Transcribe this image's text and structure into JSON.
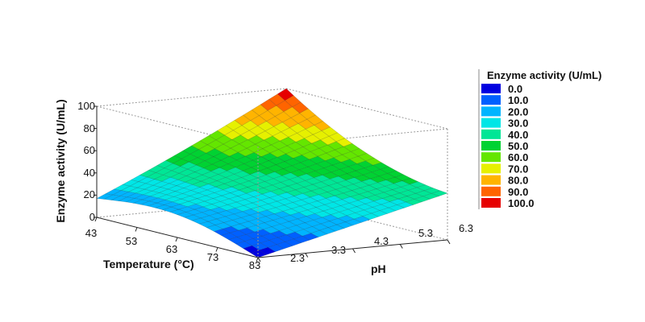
{
  "chart_data": {
    "type": "surface3d",
    "title": "",
    "xlabel": "Temperature (°C)",
    "ylabel": "pH",
    "zlabel": "Enzyme activity (U/mL)",
    "x_ticks": [
      "43",
      "53",
      "63",
      "73",
      "83"
    ],
    "y_ticks": [
      "2.3",
      "3.3",
      "4.3",
      "5.3",
      "6.3"
    ],
    "z_ticks": [
      "0",
      "20",
      "40",
      "60",
      "80",
      "100"
    ],
    "xlim": [
      43,
      83
    ],
    "ylim": [
      2.3,
      6.3
    ],
    "zlim": [
      0,
      100
    ],
    "grid": false,
    "legend": {
      "title": "Enzyme activity (U/mL)",
      "placement": "right",
      "entries": [
        {
          "label": "0.0",
          "value": 0,
          "color": "#0000e0"
        },
        {
          "label": "10.0",
          "value": 10,
          "color": "#0060ff"
        },
        {
          "label": "20.0",
          "value": 20,
          "color": "#00b4ff"
        },
        {
          "label": "30.0",
          "value": 30,
          "color": "#00e6e6"
        },
        {
          "label": "40.0",
          "value": 40,
          "color": "#00e696"
        },
        {
          "label": "50.0",
          "value": 50,
          "color": "#00d232"
        },
        {
          "label": "60.0",
          "value": 60,
          "color": "#64e600"
        },
        {
          "label": "70.0",
          "value": 70,
          "color": "#e6f000"
        },
        {
          "label": "80.0",
          "value": 80,
          "color": "#ffb400"
        },
        {
          "label": "90.0",
          "value": 90,
          "color": "#ff6400"
        },
        {
          "label": "100.0",
          "value": 100,
          "color": "#e60000"
        }
      ]
    },
    "corner_values": [
      {
        "temperature": 43,
        "pH": 2.3,
        "activity": 17
      },
      {
        "temperature": 83,
        "pH": 2.3,
        "activity": 0
      },
      {
        "temperature": 43,
        "pH": 6.3,
        "activity": 100
      },
      {
        "temperature": 83,
        "pH": 6.3,
        "activity": 42
      }
    ]
  }
}
